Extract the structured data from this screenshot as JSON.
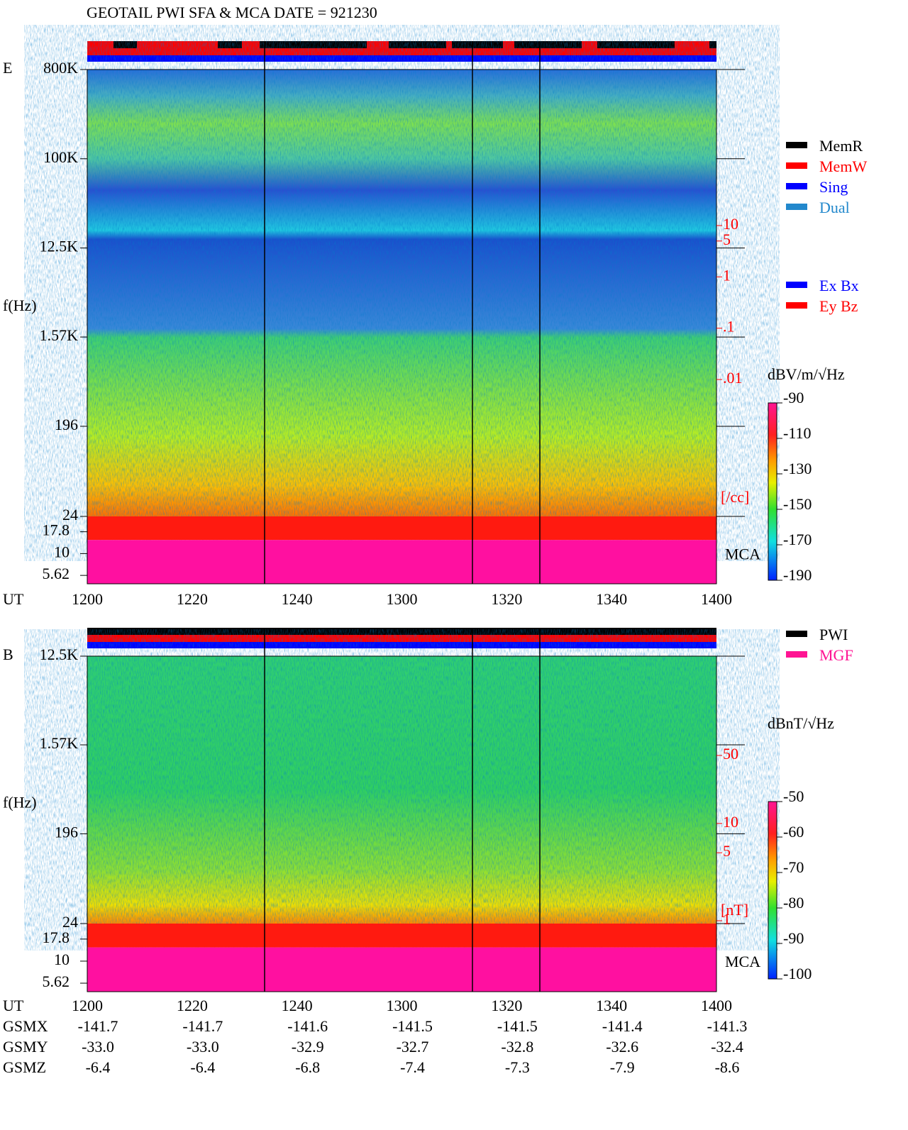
{
  "chart_data": [
    {
      "type": "spectrogram",
      "title": "GEOTAIL  PWI SFA & MCA  DATE = 921230",
      "panel_label": "E",
      "ylabel": "f(Hz)",
      "xlabel": "UT",
      "categories": [
        "1200",
        "1220",
        "1240",
        "1300",
        "1320",
        "1340",
        "1400"
      ],
      "log_y": true,
      "ylim": [
        24,
        800000
      ],
      "yticks": [
        {
          "value": 800000,
          "label": "800K"
        },
        {
          "value": 100000,
          "label": "100K"
        },
        {
          "value": 12500,
          "label": "12.5K"
        },
        {
          "value": 1570,
          "label": "1.57K"
        },
        196,
        24
      ],
      "mca_label": "MCA",
      "mca_ylim": [
        4.5,
        26.7
      ],
      "mca_yticks": [
        17.8,
        10,
        5.62
      ],
      "colorbar": {
        "label": "dBV/m/√Hz",
        "lim": [
          -190,
          -90
        ],
        "ticks": [
          -90,
          -110,
          -130,
          -150,
          -170,
          -190
        ]
      },
      "side_scale": {
        "lim": [
          10,
          0.01
        ],
        "ticks": [
          10,
          5,
          1,
          {
            "value": 0.1,
            "label": ".1"
          },
          {
            "value": 0.01,
            "label": ".01"
          }
        ],
        "unit": "[/cc]"
      },
      "legend": [
        {
          "name": "MemR",
          "color": "#000000"
        },
        {
          "name": "MemW",
          "color": "#ff0000"
        },
        {
          "name": "Sing",
          "color": "#0000ff"
        },
        {
          "name": "Dual",
          "color": "#2288cc"
        }
      ],
      "legend2": [
        {
          "name": "Ex Bx",
          "color": "#0000ff"
        },
        {
          "name": "Ey Bz",
          "color": "#ff0000"
        }
      ]
    },
    {
      "type": "spectrogram",
      "panel_label": "B",
      "ylabel": "f(Hz)",
      "xlabel": "UT",
      "categories": [
        "1200",
        "1220",
        "1240",
        "1300",
        "1320",
        "1340",
        "1400"
      ],
      "log_y": true,
      "ylim": [
        24,
        12500
      ],
      "yticks": [
        {
          "value": 12500,
          "label": "12.5K"
        },
        {
          "value": 1570,
          "label": "1.57K"
        },
        196,
        24
      ],
      "mca_label": "MCA",
      "mca_ylim": [
        4.5,
        26.7
      ],
      "mca_yticks": [
        17.8,
        10,
        5.62
      ],
      "colorbar": {
        "label": "dBnT/√Hz",
        "lim": [
          -100,
          -50
        ],
        "ticks": [
          -50,
          -60,
          -70,
          -80,
          -90,
          -100
        ]
      },
      "side_scale": {
        "lim": [
          50,
          1
        ],
        "ticks": [
          50,
          10,
          5,
          1
        ],
        "unit": "[nT]"
      },
      "legend": [
        {
          "name": "PWI",
          "color": "#000000"
        },
        {
          "name": "MGF",
          "color": "#ff1493"
        }
      ],
      "orbit": [
        {
          "name": "GSMX",
          "values": [
            "-141.7",
            "-141.7",
            "-141.6",
            "-141.5",
            "-141.5",
            "-141.4",
            "-141.3"
          ]
        },
        {
          "name": "GSMY",
          "values": [
            "-33.0",
            "-33.0",
            "-32.9",
            "-32.7",
            "-32.8",
            "-32.6",
            "-32.4"
          ]
        },
        {
          "name": "GSMZ",
          "values": [
            "-6.4",
            "-6.4",
            "-6.8",
            "-7.4",
            "-7.3",
            "-7.9",
            "-8.6"
          ]
        }
      ]
    }
  ]
}
